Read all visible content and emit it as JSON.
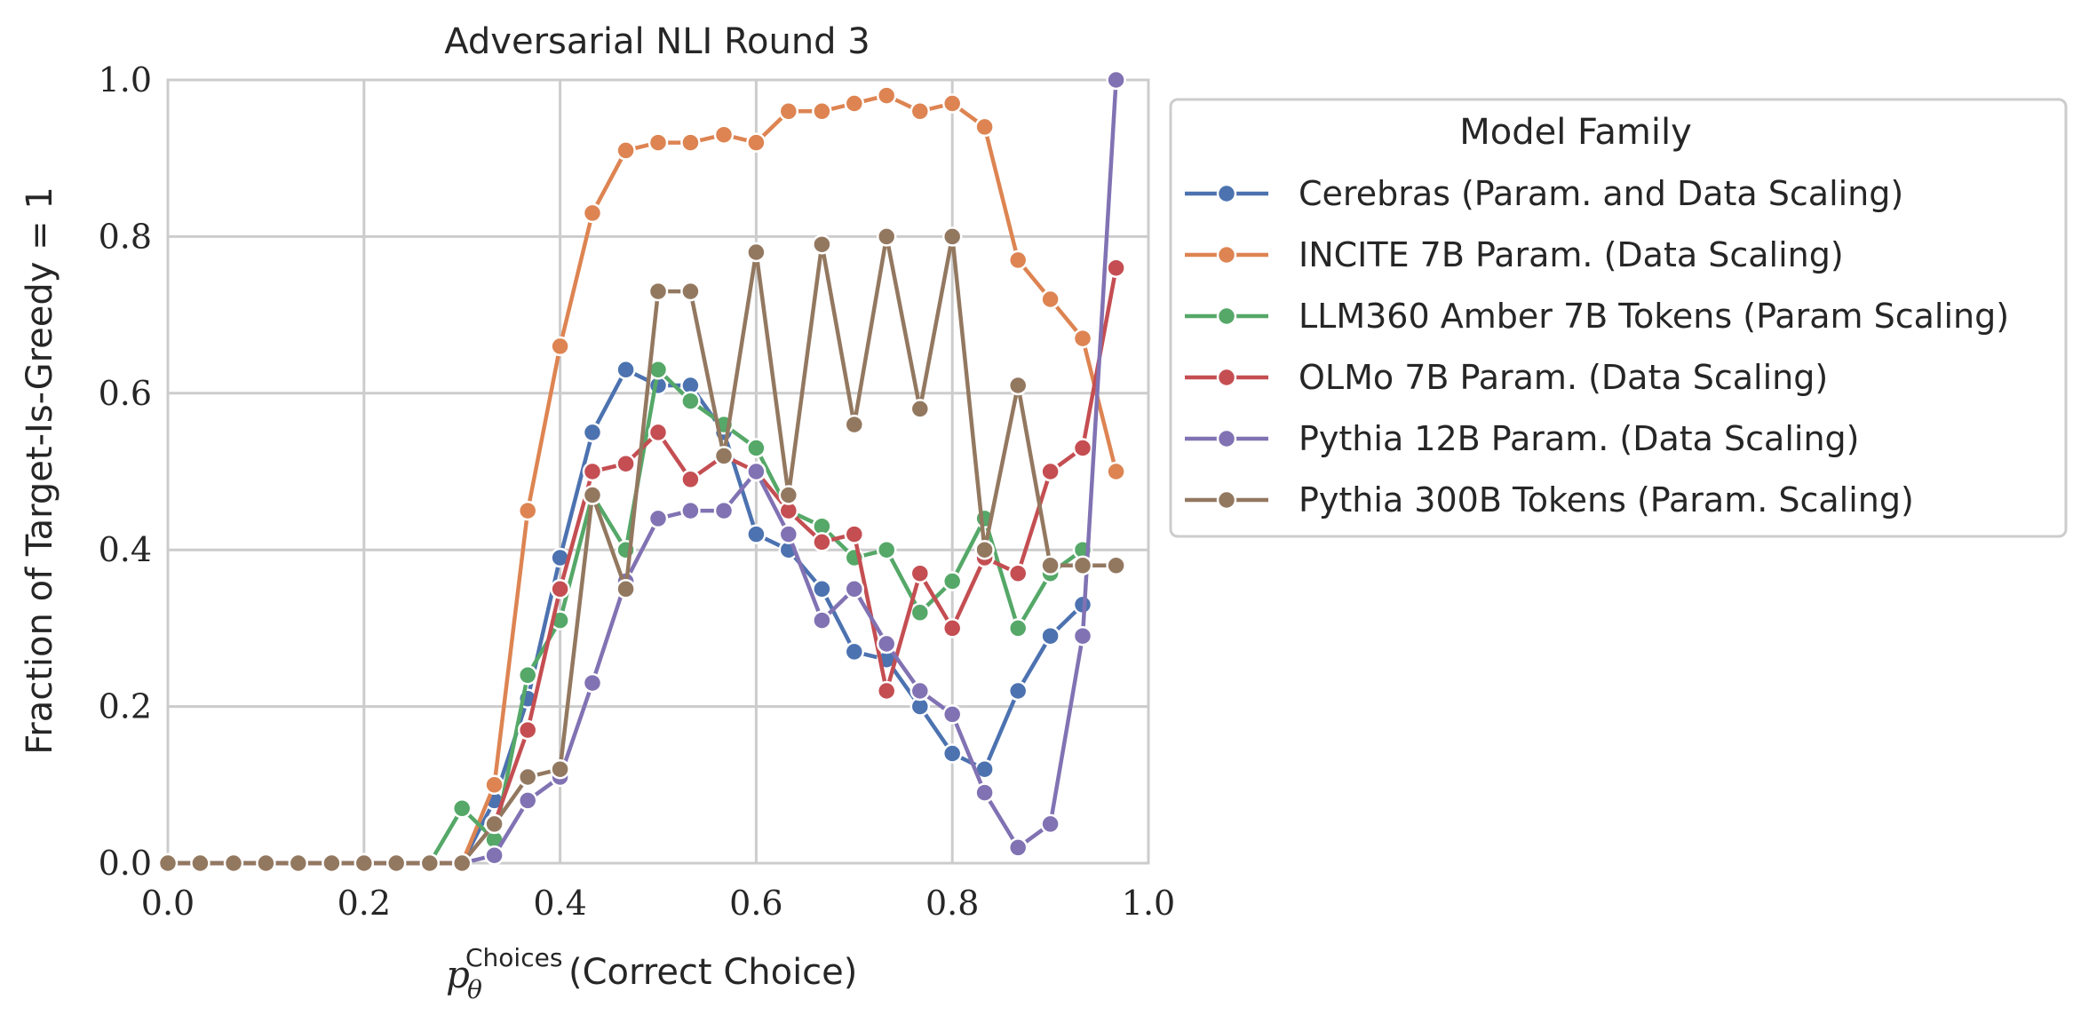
{
  "chart_data": {
    "type": "line",
    "title": "Adversarial NLI Round 3",
    "xlabel_math": "p",
    "xlabel_sub": "θ",
    "xlabel_sup": "Choices",
    "xlabel_text": "(Correct Choice)",
    "ylabel": "Fraction of Target-Is-Greedy = 1",
    "xlim": [
      0,
      1
    ],
    "ylim": [
      0,
      1
    ],
    "x_ticks": [
      "0.0",
      "0.2",
      "0.4",
      "0.6",
      "0.8",
      "1.0"
    ],
    "y_ticks": [
      "0.0",
      "0.2",
      "0.4",
      "0.6",
      "0.8",
      "1.0"
    ],
    "grid": true,
    "legend_title": "Model Family",
    "legend_position": "outside-right-top",
    "x": [
      0.0,
      0.033,
      0.067,
      0.1,
      0.133,
      0.167,
      0.2,
      0.233,
      0.267,
      0.3,
      0.333,
      0.367,
      0.4,
      0.433,
      0.467,
      0.5,
      0.533,
      0.567,
      0.6,
      0.633,
      0.667,
      0.7,
      0.733,
      0.767,
      0.8,
      0.833,
      0.867,
      0.9,
      0.933,
      0.967
    ],
    "series": [
      {
        "name": "Cerebras (Param. and Data Scaling)",
        "color": "#4c72b0",
        "values": [
          0,
          0,
          0,
          0,
          0,
          0,
          0,
          0,
          0,
          0,
          0.08,
          0.21,
          0.39,
          0.55,
          0.63,
          0.61,
          0.61,
          0.55,
          0.42,
          0.4,
          0.35,
          0.27,
          0.26,
          0.2,
          0.14,
          0.12,
          0.22,
          0.29,
          0.33,
          null
        ]
      },
      {
        "name": "INCITE 7B Param. (Data Scaling)",
        "color": "#dd8452",
        "values": [
          0,
          0,
          0,
          0,
          0,
          0,
          0,
          0,
          0,
          0,
          0.1,
          0.45,
          0.66,
          0.83,
          0.91,
          0.92,
          0.92,
          0.93,
          0.92,
          0.96,
          0.96,
          0.97,
          0.98,
          0.96,
          0.97,
          0.94,
          0.77,
          0.72,
          0.67,
          0.5
        ]
      },
      {
        "name": "LLM360 Amber 7B Tokens (Param Scaling)",
        "color": "#55a868",
        "values": [
          0,
          0,
          0,
          0,
          0,
          0,
          0,
          0,
          0,
          0.07,
          0.03,
          0.24,
          0.31,
          0.47,
          0.4,
          0.63,
          0.59,
          0.56,
          0.53,
          0.45,
          0.43,
          0.39,
          0.4,
          0.32,
          0.36,
          0.44,
          0.3,
          0.37,
          0.4,
          null
        ]
      },
      {
        "name": "OLMo 7B Param. (Data Scaling)",
        "color": "#c44e52",
        "values": [
          0,
          0,
          0,
          0,
          0,
          0,
          0,
          0,
          0,
          0,
          0.05,
          0.17,
          0.35,
          0.5,
          0.51,
          0.55,
          0.49,
          0.52,
          0.5,
          0.45,
          0.41,
          0.42,
          0.22,
          0.37,
          0.3,
          0.39,
          0.37,
          0.5,
          0.53,
          0.76
        ]
      },
      {
        "name": "Pythia 12B Param. (Data Scaling)",
        "color": "#8172b3",
        "values": [
          0,
          0,
          0,
          0,
          0,
          0,
          0,
          0,
          0,
          0,
          0.01,
          0.08,
          0.11,
          0.23,
          0.36,
          0.44,
          0.45,
          0.45,
          0.5,
          0.42,
          0.31,
          0.35,
          0.28,
          0.22,
          0.19,
          0.09,
          0.02,
          0.05,
          0.29,
          1.0
        ]
      },
      {
        "name": "Pythia 300B Tokens (Param. Scaling)",
        "color": "#937860",
        "values": [
          0,
          0,
          0,
          0,
          0,
          0,
          0,
          0,
          0,
          0,
          0.05,
          0.11,
          0.12,
          0.47,
          0.35,
          0.73,
          0.73,
          0.52,
          0.78,
          0.47,
          0.79,
          0.56,
          0.8,
          0.58,
          0.8,
          0.4,
          0.61,
          0.38,
          0.38,
          0.38
        ]
      }
    ]
  }
}
